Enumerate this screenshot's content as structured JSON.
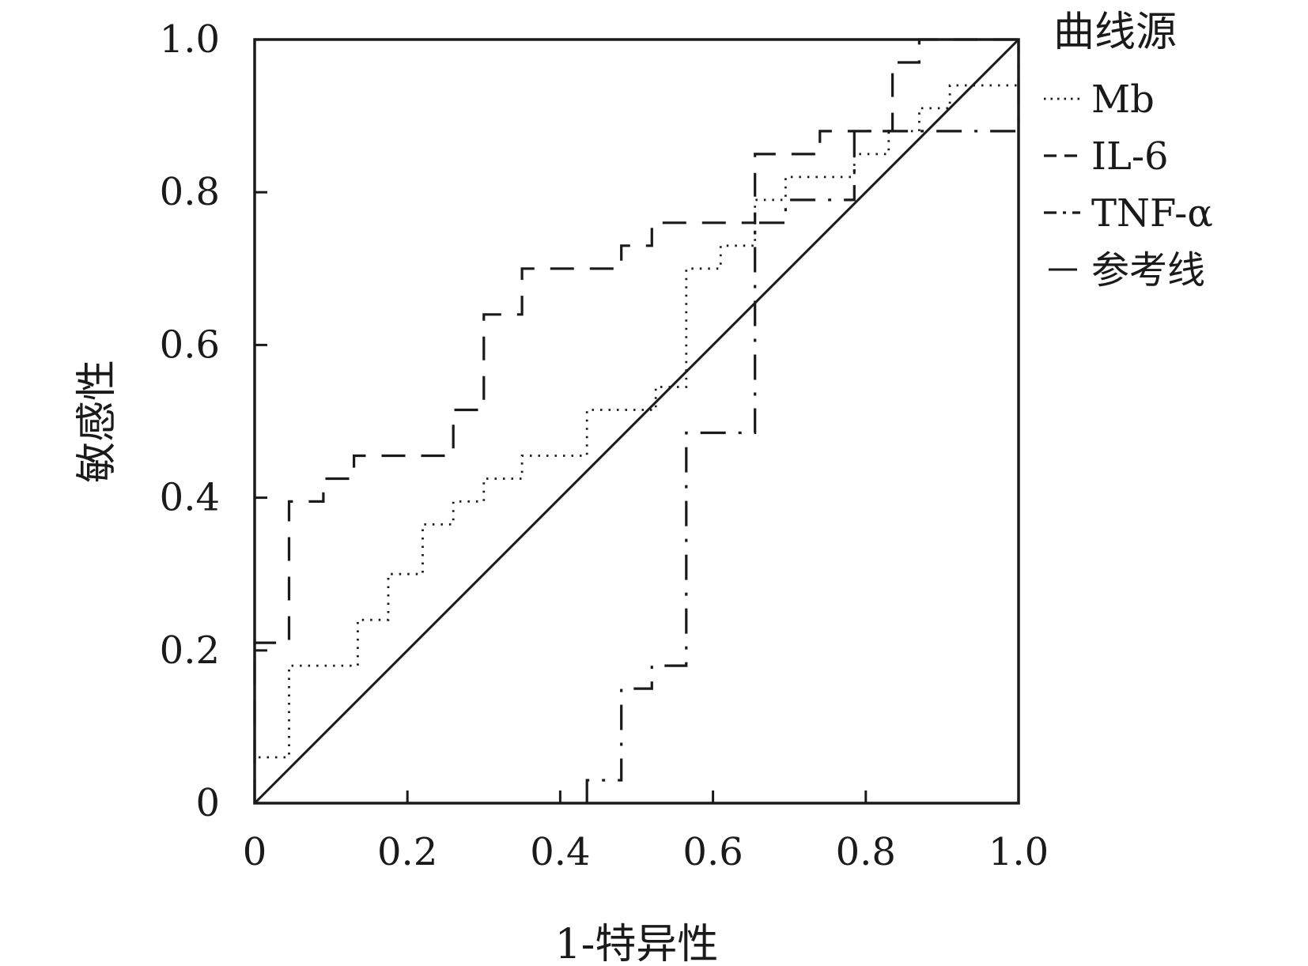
{
  "chart_data": {
    "type": "line",
    "title": "",
    "xlabel": "1-特异性",
    "ylabel": "敏感性",
    "xlim": [
      0,
      1.0
    ],
    "ylim": [
      0,
      1.0
    ],
    "grid": false,
    "legend_position": "right",
    "x_tick_labels": [
      "0",
      "0.2",
      "0.4",
      "0.6",
      "0.8",
      "1.0"
    ],
    "y_tick_labels": [
      "0",
      "0.2",
      "0.4",
      "0.6",
      "0.8",
      "1.0"
    ],
    "x_ticks": [
      0,
      0.2,
      0.4,
      0.6,
      0.8,
      1.0
    ],
    "y_ticks": [
      0,
      0.2,
      0.4,
      0.6,
      0.8,
      1.0
    ],
    "legend": {
      "title": "曲线源"
    },
    "series": [
      {
        "name": "Mb",
        "style": "dotted",
        "color": "#1a1a1a",
        "points": [
          [
            0,
            0
          ],
          [
            0,
            0.06
          ],
          [
            0.045,
            0.06
          ],
          [
            0.045,
            0.18
          ],
          [
            0.135,
            0.18
          ],
          [
            0.135,
            0.24
          ],
          [
            0.175,
            0.24
          ],
          [
            0.175,
            0.3
          ],
          [
            0.22,
            0.3
          ],
          [
            0.22,
            0.365
          ],
          [
            0.26,
            0.365
          ],
          [
            0.26,
            0.395
          ],
          [
            0.3,
            0.395
          ],
          [
            0.3,
            0.425
          ],
          [
            0.35,
            0.425
          ],
          [
            0.35,
            0.455
          ],
          [
            0.435,
            0.455
          ],
          [
            0.435,
            0.515
          ],
          [
            0.525,
            0.515
          ],
          [
            0.525,
            0.545
          ],
          [
            0.565,
            0.545
          ],
          [
            0.565,
            0.7
          ],
          [
            0.61,
            0.7
          ],
          [
            0.61,
            0.73
          ],
          [
            0.655,
            0.73
          ],
          [
            0.655,
            0.79
          ],
          [
            0.695,
            0.79
          ],
          [
            0.695,
            0.82
          ],
          [
            0.785,
            0.82
          ],
          [
            0.785,
            0.85
          ],
          [
            0.83,
            0.85
          ],
          [
            0.83,
            0.88
          ],
          [
            0.87,
            0.88
          ],
          [
            0.87,
            0.91
          ],
          [
            0.91,
            0.91
          ],
          [
            0.91,
            0.94
          ],
          [
            1.0,
            0.94
          ],
          [
            1.0,
            1.0
          ]
        ]
      },
      {
        "name": "IL-6",
        "style": "dashed",
        "color": "#1a1a1a",
        "points": [
          [
            0,
            0
          ],
          [
            0,
            0.21
          ],
          [
            0.045,
            0.21
          ],
          [
            0.045,
            0.395
          ],
          [
            0.09,
            0.395
          ],
          [
            0.09,
            0.425
          ],
          [
            0.13,
            0.425
          ],
          [
            0.13,
            0.455
          ],
          [
            0.26,
            0.455
          ],
          [
            0.26,
            0.515
          ],
          [
            0.3,
            0.515
          ],
          [
            0.3,
            0.64
          ],
          [
            0.35,
            0.64
          ],
          [
            0.35,
            0.7
          ],
          [
            0.48,
            0.7
          ],
          [
            0.48,
            0.73
          ],
          [
            0.52,
            0.73
          ],
          [
            0.52,
            0.76
          ],
          [
            0.655,
            0.76
          ],
          [
            0.655,
            0.85
          ],
          [
            0.74,
            0.85
          ],
          [
            0.74,
            0.88
          ],
          [
            0.835,
            0.88
          ],
          [
            0.835,
            0.97
          ],
          [
            0.87,
            0.97
          ],
          [
            0.87,
            1.0
          ],
          [
            1.0,
            1.0
          ]
        ]
      },
      {
        "name": "TNF-α",
        "style": "dash-dot",
        "color": "#1a1a1a",
        "points": [
          [
            0.435,
            0
          ],
          [
            0.435,
            0.03
          ],
          [
            0.48,
            0.03
          ],
          [
            0.48,
            0.15
          ],
          [
            0.52,
            0.15
          ],
          [
            0.52,
            0.18
          ],
          [
            0.565,
            0.18
          ],
          [
            0.565,
            0.485
          ],
          [
            0.655,
            0.485
          ],
          [
            0.655,
            0.76
          ],
          [
            0.695,
            0.76
          ],
          [
            0.695,
            0.79
          ],
          [
            0.785,
            0.79
          ],
          [
            0.785,
            0.88
          ],
          [
            1.0,
            0.88
          ],
          [
            1.0,
            1.0
          ]
        ]
      },
      {
        "name": "参考线",
        "style": "solid",
        "color": "#1a1a1a",
        "points": [
          [
            0,
            0
          ],
          [
            1.0,
            1.0
          ]
        ]
      }
    ]
  }
}
